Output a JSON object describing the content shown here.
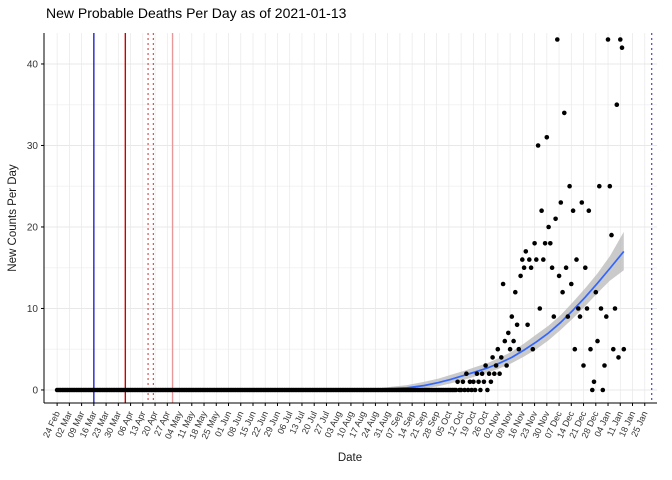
{
  "chart_data": {
    "type": "scatter",
    "title": "New Probable Deaths Per Day as of 2021-01-13",
    "xlabel": "Date",
    "ylabel": "New Counts Per Day",
    "x_unit": "days since first tick (24 Feb)",
    "x_tick_labels": [
      "24 Feb",
      "02 Mar",
      "09 Mar",
      "16 Mar",
      "23 Mar",
      "30 Mar",
      "06 Apr",
      "13 Apr",
      "20 Apr",
      "27 Apr",
      "04 May",
      "11 May",
      "18 May",
      "25 May",
      "01 Jun",
      "08 Jun",
      "15 Jun",
      "22 Jun",
      "29 Jun",
      "06 Jul",
      "13 Jul",
      "20 Jul",
      "27 Jul",
      "03 Aug",
      "10 Aug",
      "17 Aug",
      "24 Aug",
      "31 Aug",
      "07 Sep",
      "14 Sep",
      "21 Sep",
      "28 Sep",
      "05 Oct",
      "12 Oct",
      "19 Oct",
      "26 Oct",
      "02 Nov",
      "09 Nov",
      "16 Nov",
      "23 Nov",
      "30 Nov",
      "07 Dec",
      "14 Dec",
      "21 Dec",
      "28 Dec",
      "04 Jan",
      "11 Jan",
      "18 Jan",
      "25 Jan"
    ],
    "y_ticks": [
      0,
      10,
      20,
      30,
      40
    ],
    "y_minor_ticks": [
      5,
      15,
      25,
      35
    ],
    "ylim": [
      -1.6,
      43.8
    ],
    "xlim_days": [
      -7.5,
      343
    ],
    "grid": true,
    "legend": "none",
    "zero_run_days": [
      0,
      228
    ],
    "points": [
      [
        229,
        1
      ],
      [
        230,
        0
      ],
      [
        231,
        0
      ],
      [
        232,
        1
      ],
      [
        233,
        0
      ],
      [
        234,
        2
      ],
      [
        235,
        0
      ],
      [
        236,
        1
      ],
      [
        237,
        0
      ],
      [
        238,
        1
      ],
      [
        239,
        0
      ],
      [
        240,
        2
      ],
      [
        241,
        1
      ],
      [
        242,
        0
      ],
      [
        243,
        2
      ],
      [
        244,
        1
      ],
      [
        245,
        3
      ],
      [
        246,
        0
      ],
      [
        247,
        2
      ],
      [
        248,
        1
      ],
      [
        249,
        4
      ],
      [
        250,
        2
      ],
      [
        251,
        3
      ],
      [
        252,
        5
      ],
      [
        253,
        2
      ],
      [
        254,
        4
      ],
      [
        255,
        13
      ],
      [
        256,
        6
      ],
      [
        257,
        3
      ],
      [
        258,
        7
      ],
      [
        259,
        5
      ],
      [
        260,
        9
      ],
      [
        261,
        6
      ],
      [
        262,
        12
      ],
      [
        263,
        8
      ],
      [
        264,
        5
      ],
      [
        265,
        14
      ],
      [
        266,
        16
      ],
      [
        267,
        15
      ],
      [
        268,
        17
      ],
      [
        269,
        8
      ],
      [
        270,
        16
      ],
      [
        271,
        15
      ],
      [
        272,
        5
      ],
      [
        273,
        18
      ],
      [
        274,
        16
      ],
      [
        275,
        30
      ],
      [
        276,
        10
      ],
      [
        277,
        22
      ],
      [
        278,
        16
      ],
      [
        279,
        18
      ],
      [
        280,
        31
      ],
      [
        281,
        20
      ],
      [
        282,
        18
      ],
      [
        283,
        15
      ],
      [
        284,
        9
      ],
      [
        285,
        21
      ],
      [
        286,
        43
      ],
      [
        287,
        14
      ],
      [
        288,
        23
      ],
      [
        289,
        12
      ],
      [
        290,
        34
      ],
      [
        291,
        15
      ],
      [
        292,
        9
      ],
      [
        293,
        25
      ],
      [
        294,
        13
      ],
      [
        295,
        22
      ],
      [
        296,
        5
      ],
      [
        297,
        16
      ],
      [
        298,
        10
      ],
      [
        299,
        9
      ],
      [
        300,
        23
      ],
      [
        301,
        3
      ],
      [
        302,
        15
      ],
      [
        303,
        10
      ],
      [
        304,
        22
      ],
      [
        305,
        5
      ],
      [
        306,
        0
      ],
      [
        307,
        1
      ],
      [
        308,
        12
      ],
      [
        309,
        6
      ],
      [
        310,
        25
      ],
      [
        311,
        10
      ],
      [
        312,
        0
      ],
      [
        313,
        3
      ],
      [
        314,
        9
      ],
      [
        315,
        43
      ],
      [
        316,
        25
      ],
      [
        317,
        19
      ],
      [
        318,
        5
      ],
      [
        319,
        10
      ],
      [
        320,
        35
      ],
      [
        321,
        4
      ],
      [
        322,
        43
      ],
      [
        323,
        42
      ],
      [
        324,
        5
      ]
    ],
    "smooth_line": [
      [
        0,
        0.05
      ],
      [
        40,
        0.05
      ],
      [
        80,
        0.05
      ],
      [
        120,
        0.05
      ],
      [
        160,
        0.05
      ],
      [
        185,
        0.1
      ],
      [
        200,
        0.25
      ],
      [
        210,
        0.55
      ],
      [
        218,
        0.9
      ],
      [
        225,
        1.3
      ],
      [
        232,
        1.75
      ],
      [
        239,
        2.2
      ],
      [
        246,
        2.7
      ],
      [
        253,
        3.3
      ],
      [
        260,
        4.0
      ],
      [
        267,
        4.9
      ],
      [
        274,
        5.9
      ],
      [
        281,
        7.0
      ],
      [
        288,
        8.3
      ],
      [
        295,
        9.8
      ],
      [
        302,
        11.4
      ],
      [
        309,
        13.1
      ],
      [
        316,
        14.9
      ],
      [
        324,
        17.0
      ]
    ],
    "ribbon": [
      [
        185,
        0.0,
        0.25
      ],
      [
        200,
        0.05,
        0.6
      ],
      [
        210,
        0.2,
        1.0
      ],
      [
        218,
        0.45,
        1.4
      ],
      [
        225,
        0.8,
        1.85
      ],
      [
        232,
        1.2,
        2.3
      ],
      [
        239,
        1.65,
        2.8
      ],
      [
        246,
        2.1,
        3.3
      ],
      [
        253,
        2.65,
        3.95
      ],
      [
        260,
        3.3,
        4.7
      ],
      [
        267,
        4.1,
        5.7
      ],
      [
        274,
        5.0,
        6.8
      ],
      [
        281,
        6.1,
        7.9
      ],
      [
        288,
        7.4,
        9.2
      ],
      [
        295,
        8.8,
        10.8
      ],
      [
        302,
        10.3,
        12.5
      ],
      [
        309,
        11.9,
        14.3
      ],
      [
        316,
        13.4,
        16.4
      ],
      [
        324,
        14.7,
        19.4
      ]
    ],
    "vlines": [
      {
        "day": 21,
        "color": "#2222cc",
        "style": "solid"
      },
      {
        "day": 39,
        "color": "#cc0000",
        "style": "solid"
      },
      {
        "day": 52,
        "color": "#cc3333",
        "style": "dotted"
      },
      {
        "day": 55,
        "color": "#cc3333",
        "style": "dotted"
      },
      {
        "day": 66,
        "color": "#e89898",
        "style": "solid"
      },
      {
        "day": 340,
        "color": "#2222cc",
        "style": "dotted"
      }
    ],
    "colors": {
      "point": "#000000",
      "smooth_line": "#3366ff",
      "ribbon": "#b8b8b8",
      "grid_major": "#e8e8e8",
      "grid_minor": "#f3f3f3",
      "axis": "#000000",
      "tick_label": "#333333"
    }
  }
}
